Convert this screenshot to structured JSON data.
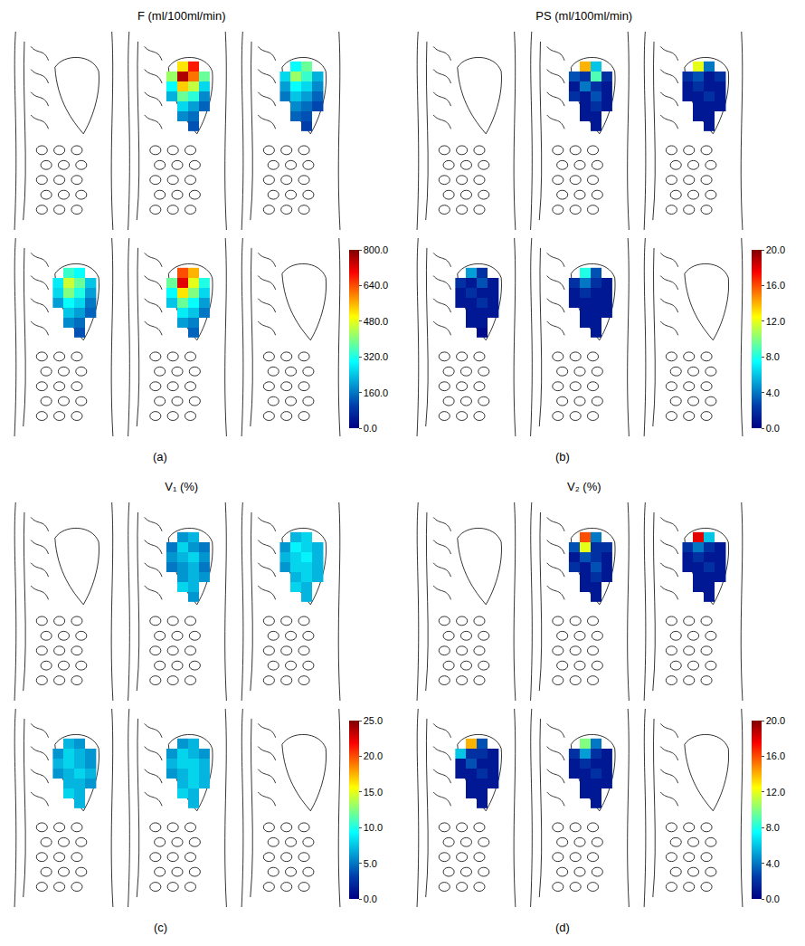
{
  "chart_data": [
    {
      "type": "heatmap",
      "title": "F (ml/100ml/min)",
      "label": "(a)",
      "color": "Jet",
      "tick_labels": false,
      "zlim": [
        0,
        800
      ],
      "zticks": [
        {
          "value": 0,
          "label": "0.0"
        },
        {
          "value": 160,
          "label": "160.0"
        },
        {
          "value": 320,
          "label": "320.0"
        },
        {
          "value": 480,
          "label": "480.0"
        },
        {
          "value": 640,
          "label": "640.0"
        },
        {
          "value": 800,
          "label": "800.0"
        }
      ],
      "cells": [
        null,
        [
          [
            null,
            520,
            680,
            null
          ],
          [
            420,
            760,
            610,
            380
          ],
          [
            300,
            540,
            450,
            260
          ],
          [
            220,
            380,
            330,
            180
          ],
          [
            null,
            260,
            200,
            140
          ],
          [
            null,
            180,
            150,
            null
          ],
          [
            null,
            null,
            120,
            null
          ]
        ],
        [
          [
            null,
            300,
            380,
            null
          ],
          [
            260,
            420,
            340,
            220
          ],
          [
            200,
            300,
            260,
            180
          ],
          [
            160,
            240,
            200,
            140
          ],
          [
            null,
            180,
            150,
            110
          ],
          [
            null,
            140,
            120,
            null
          ],
          [
            null,
            null,
            100,
            null
          ]
        ],
        [
          [
            null,
            340,
            300,
            null
          ],
          [
            280,
            460,
            380,
            240
          ],
          [
            260,
            400,
            320,
            200
          ],
          [
            200,
            300,
            260,
            160
          ],
          [
            null,
            240,
            200,
            140
          ],
          [
            null,
            180,
            150,
            null
          ],
          [
            null,
            null,
            120,
            null
          ]
        ],
        [
          [
            null,
            640,
            560,
            null
          ],
          [
            380,
            720,
            480,
            320
          ],
          [
            300,
            520,
            400,
            260
          ],
          [
            240,
            380,
            300,
            200
          ],
          [
            null,
            280,
            240,
            160
          ],
          [
            null,
            200,
            170,
            null
          ],
          [
            null,
            null,
            140,
            null
          ]
        ],
        null
      ]
    },
    {
      "type": "heatmap",
      "title": "PS (ml/100ml/min)",
      "label": "(b)",
      "color": "Jet",
      "tick_labels": false,
      "zlim": [
        0,
        20
      ],
      "zticks": [
        {
          "value": 0,
          "label": "0.0"
        },
        {
          "value": 4,
          "label": "4.0"
        },
        {
          "value": 8,
          "label": "8.0"
        },
        {
          "value": 12,
          "label": "12.0"
        },
        {
          "value": 16,
          "label": "16.0"
        },
        {
          "value": 20,
          "label": "20.0"
        }
      ],
      "cells": [
        null,
        [
          [
            null,
            14,
            6,
            null
          ],
          [
            3,
            2,
            9,
            2
          ],
          [
            1,
            4,
            2,
            1
          ],
          [
            2,
            1,
            3,
            1
          ],
          [
            null,
            1,
            2,
            1
          ],
          [
            null,
            1,
            1,
            null
          ],
          [
            null,
            null,
            1,
            null
          ]
        ],
        [
          [
            null,
            12,
            4,
            null
          ],
          [
            2,
            3,
            1,
            2
          ],
          [
            1,
            2,
            1,
            1
          ],
          [
            1,
            1,
            2,
            1
          ],
          [
            null,
            1,
            1,
            1
          ],
          [
            null,
            1,
            1,
            null
          ],
          [
            null,
            null,
            1,
            null
          ]
        ],
        [
          [
            null,
            5,
            2,
            null
          ],
          [
            2,
            1,
            3,
            1
          ],
          [
            1,
            2,
            1,
            1
          ],
          [
            1,
            1,
            2,
            1
          ],
          [
            null,
            1,
            1,
            1
          ],
          [
            null,
            1,
            1,
            null
          ],
          [
            null,
            null,
            0.5,
            null
          ]
        ],
        [
          [
            null,
            8,
            3,
            null
          ],
          [
            2,
            4,
            2,
            1
          ],
          [
            1,
            2,
            1,
            1
          ],
          [
            1,
            1,
            1,
            1
          ],
          [
            null,
            1,
            1,
            1
          ],
          [
            null,
            1,
            1,
            null
          ],
          [
            null,
            null,
            1,
            null
          ]
        ],
        null
      ]
    },
    {
      "type": "heatmap",
      "title": "V₁ (%)",
      "label": "(c)",
      "color": "Jet",
      "tick_labels": false,
      "zlim": [
        0,
        25
      ],
      "zticks": [
        {
          "value": 0,
          "label": "0.0"
        },
        {
          "value": 5,
          "label": "5.0"
        },
        {
          "value": 10,
          "label": "10.0"
        },
        {
          "value": 15,
          "label": "15.0"
        },
        {
          "value": 20,
          "label": "20.0"
        },
        {
          "value": 25,
          "label": "25.0"
        }
      ],
      "cells": [
        null,
        [
          [
            null,
            6,
            7,
            null
          ],
          [
            5,
            8,
            6,
            5
          ],
          [
            6,
            7,
            8,
            6
          ],
          [
            5,
            6,
            7,
            5
          ],
          [
            null,
            6,
            7,
            6
          ],
          [
            null,
            8,
            7,
            null
          ],
          [
            null,
            null,
            6,
            null
          ]
        ],
        [
          [
            null,
            7,
            8,
            null
          ],
          [
            6,
            9,
            8,
            7
          ],
          [
            7,
            8,
            9,
            7
          ],
          [
            6,
            8,
            8,
            7
          ],
          [
            null,
            7,
            8,
            7
          ],
          [
            null,
            8,
            7,
            null
          ],
          [
            null,
            null,
            7,
            null
          ]
        ],
        [
          [
            null,
            7,
            6,
            null
          ],
          [
            6,
            8,
            7,
            6
          ],
          [
            7,
            8,
            7,
            6
          ],
          [
            6,
            7,
            8,
            7
          ],
          [
            null,
            7,
            7,
            6
          ],
          [
            null,
            8,
            7,
            null
          ],
          [
            null,
            null,
            7,
            null
          ]
        ],
        [
          [
            null,
            6,
            7,
            null
          ],
          [
            6,
            8,
            7,
            6
          ],
          [
            7,
            8,
            8,
            7
          ],
          [
            6,
            7,
            8,
            7
          ],
          [
            null,
            7,
            8,
            7
          ],
          [
            null,
            8,
            7,
            null
          ],
          [
            null,
            null,
            7,
            null
          ]
        ],
        null
      ]
    },
    {
      "type": "heatmap",
      "title": "V₂ (%)",
      "label": "(d)",
      "color": "Jet",
      "tick_labels": false,
      "zlim": [
        0,
        20
      ],
      "zticks": [
        {
          "value": 0,
          "label": "0.0"
        },
        {
          "value": 4,
          "label": "4.0"
        },
        {
          "value": 8,
          "label": "8.0"
        },
        {
          "value": 12,
          "label": "12.0"
        },
        {
          "value": 16,
          "label": "16.0"
        },
        {
          "value": 20,
          "label": "20.0"
        }
      ],
      "cells": [
        null,
        [
          [
            null,
            16,
            4,
            null
          ],
          [
            3,
            12,
            2,
            2
          ],
          [
            1,
            3,
            2,
            1
          ],
          [
            2,
            1,
            3,
            1
          ],
          [
            null,
            1,
            2,
            1
          ],
          [
            null,
            1,
            1,
            null
          ],
          [
            null,
            null,
            1,
            null
          ]
        ],
        [
          [
            null,
            18,
            6,
            null
          ],
          [
            2,
            4,
            2,
            1
          ],
          [
            1,
            2,
            1,
            1
          ],
          [
            1,
            1,
            2,
            1
          ],
          [
            null,
            1,
            1,
            1
          ],
          [
            null,
            1,
            1,
            null
          ],
          [
            null,
            null,
            1,
            null
          ]
        ],
        [
          [
            null,
            14,
            3,
            null
          ],
          [
            6,
            2,
            2,
            1
          ],
          [
            1,
            3,
            1,
            1
          ],
          [
            1,
            1,
            2,
            1
          ],
          [
            null,
            1,
            1,
            1
          ],
          [
            null,
            1,
            1,
            null
          ],
          [
            null,
            null,
            1,
            null
          ]
        ],
        [
          [
            null,
            10,
            4,
            null
          ],
          [
            2,
            5,
            2,
            1
          ],
          [
            1,
            2,
            1,
            1
          ],
          [
            1,
            1,
            2,
            1
          ],
          [
            null,
            1,
            1,
            1
          ],
          [
            null,
            1,
            1,
            null
          ],
          [
            null,
            null,
            1,
            null
          ]
        ],
        null
      ]
    }
  ]
}
